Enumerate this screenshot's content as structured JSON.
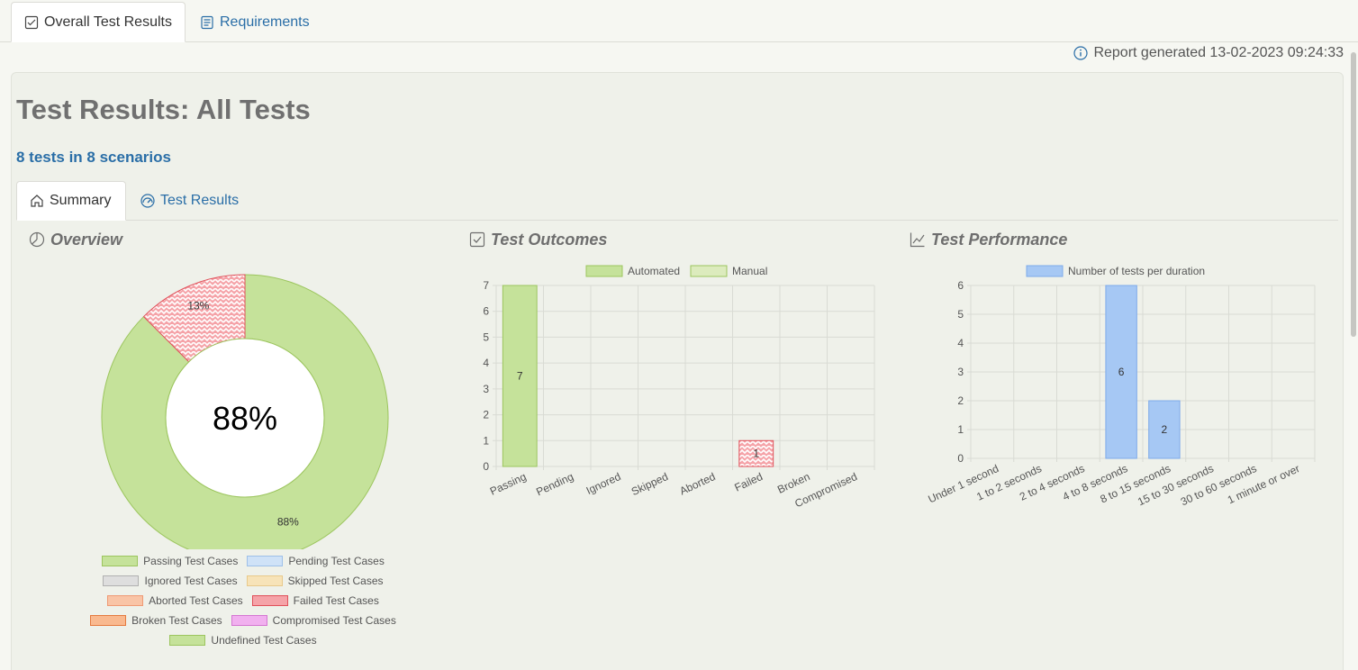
{
  "top_tabs": [
    {
      "label": "Overall Test Results",
      "icon": "checklist-icon"
    },
    {
      "label": "Requirements",
      "icon": "document-icon"
    }
  ],
  "report_generated": "Report generated 13-02-2023 09:24:33",
  "page_title": "Test Results: All Tests",
  "scenario_summary": "8 tests in 8 scenarios",
  "sub_tabs": [
    {
      "label": "Summary",
      "icon": "home-icon"
    },
    {
      "label": "Test Results",
      "icon": "gauge-icon"
    }
  ],
  "sections": {
    "overview": "Overview",
    "outcomes": "Test Outcomes",
    "performance": "Test Performance"
  },
  "colors": {
    "passing": "#c5e29a",
    "passing_border": "#9cc55e",
    "failed": "#f5a3a8",
    "failed_border": "#e0505a",
    "manual": "#dcebbd",
    "performance": "#a6c8f4",
    "performance_border": "#7eaaea",
    "link": "#2a6ea7"
  },
  "chart_data": [
    {
      "type": "pie",
      "title": "Overview",
      "center_label": "88%",
      "slices": [
        {
          "label": "Passing Test Cases",
          "value": 87.5,
          "display": "88%"
        },
        {
          "label": "Failed Test Cases",
          "value": 12.5,
          "display": "13%"
        }
      ],
      "legend": [
        {
          "label": "Passing Test Cases",
          "fill": "#c5e29a",
          "border": "#9cc55e"
        },
        {
          "label": "Pending Test Cases",
          "fill": "#cfe2f7",
          "border": "#9ec0e8"
        },
        {
          "label": "Ignored Test Cases",
          "fill": "#dedede",
          "border": "#b0b0b0"
        },
        {
          "label": "Skipped Test Cases",
          "fill": "#f7e3b8",
          "border": "#e8c98a"
        },
        {
          "label": "Aborted Test Cases",
          "fill": "#f9c4a6",
          "border": "#ef9a74"
        },
        {
          "label": "Failed Test Cases",
          "fill": "#f5a3a8",
          "border": "#e0505a"
        },
        {
          "label": "Broken Test Cases",
          "fill": "#f9b98f",
          "border": "#e57a3f"
        },
        {
          "label": "Compromised Test Cases",
          "fill": "#f1b0ef",
          "border": "#d476d2"
        },
        {
          "label": "Undefined Test Cases",
          "fill": "#c5e29a",
          "border": "#9cc55e"
        }
      ]
    },
    {
      "type": "bar",
      "title": "Test Outcomes",
      "categories": [
        "Passing",
        "Pending",
        "Ignored",
        "Skipped",
        "Aborted",
        "Failed",
        "Broken",
        "Compromised"
      ],
      "series": [
        {
          "name": "Automated",
          "values": [
            7,
            0,
            0,
            0,
            0,
            1,
            0,
            0
          ]
        },
        {
          "name": "Manual",
          "values": [
            0,
            0,
            0,
            0,
            0,
            0,
            0,
            0
          ]
        }
      ],
      "ylim": [
        0,
        7
      ],
      "yticks": [
        0,
        1,
        2,
        3,
        4,
        5,
        6,
        7
      ]
    },
    {
      "type": "bar",
      "title": "Test Performance",
      "categories": [
        "Under 1 second",
        "1 to 2 seconds",
        "2 to 4 seconds",
        "4 to 8 seconds",
        "8 to 15 seconds",
        "15 to 30 seconds",
        "30 to 60 seconds",
        "1 minute or over"
      ],
      "series": [
        {
          "name": "Number of tests per duration",
          "values": [
            0,
            0,
            0,
            6,
            2,
            0,
            0,
            0
          ]
        }
      ],
      "ylim": [
        0,
        6
      ],
      "yticks": [
        0,
        1,
        2,
        3,
        4,
        5,
        6
      ]
    }
  ]
}
